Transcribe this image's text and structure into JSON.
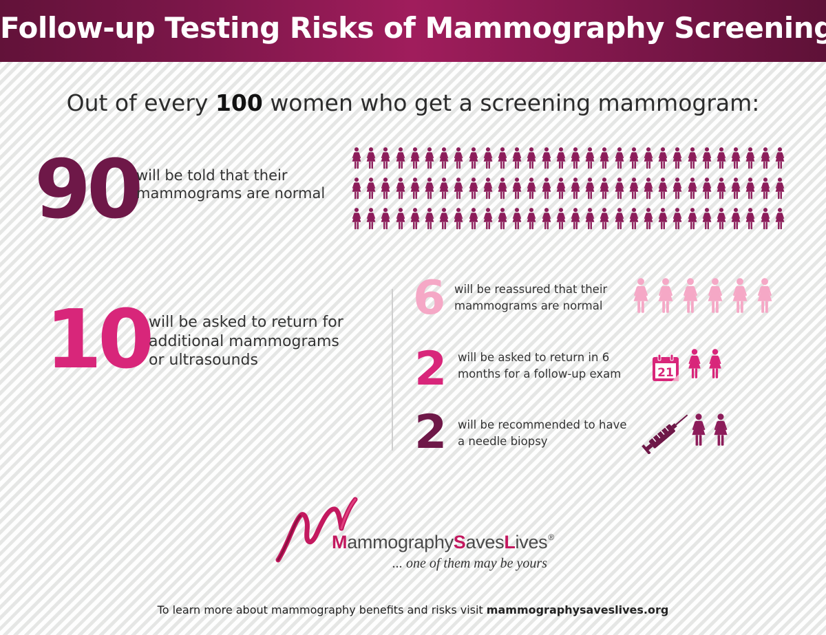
{
  "header": {
    "title": "Follow-up Testing Risks of Mammography Screening"
  },
  "intro": {
    "prefix": "Out of every ",
    "number": "100",
    "suffix": " women who get a screening mammogram:"
  },
  "stats": {
    "normal": {
      "number": "90",
      "line1": "will be told that their",
      "line2": "mammograms are normal",
      "icon_count": 90,
      "color": "#8c1d5a"
    },
    "recalled": {
      "number": "10",
      "line1": "will be asked to return for",
      "line2": "additional mammograms",
      "line3": "or ultrasounds",
      "color": "#d8267a"
    }
  },
  "breakdown": [
    {
      "number": "6",
      "line1": "will be reassured that their",
      "line2": "mammograms are normal",
      "icon_count": 6,
      "color": "#f5a8c6",
      "extra_icon": ""
    },
    {
      "number": "2",
      "line1": "will be asked to return in 6",
      "line2": "months for a follow-up exam",
      "icon_count": 2,
      "color": "#d8267a",
      "extra_icon": "calendar-icon",
      "calendar_day": "21"
    },
    {
      "number": "2",
      "line1": "will be recommended to have",
      "line2": "a needle biopsy",
      "icon_count": 2,
      "color": "#8c1d5a",
      "extra_icon": "syringe-icon"
    }
  ],
  "brand": {
    "m": "M",
    "part1": "ammography",
    "s": "S",
    "part2": "aves",
    "l": "L",
    "part3": "ives",
    "reg": "®",
    "tagline": "... one of them may be yours"
  },
  "footer": {
    "text": "To learn more about mammography benefits and risks visit ",
    "link": "mammographysaveslives.org"
  },
  "colors": {
    "header": "#7a1648",
    "dark_magenta": "#6e1848",
    "magenta": "#d8267a",
    "light_pink": "#f5a8c6"
  }
}
